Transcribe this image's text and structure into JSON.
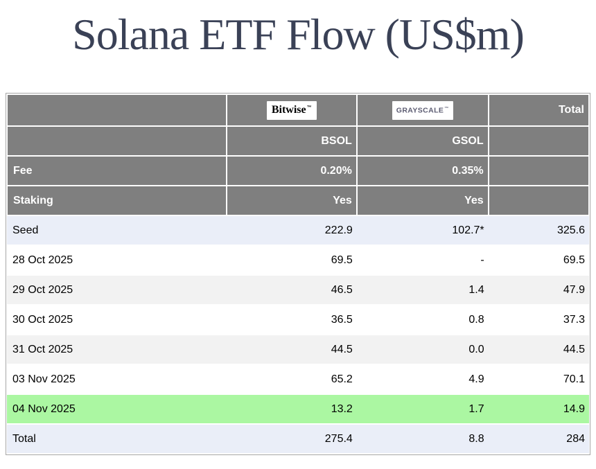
{
  "title": "Solana ETF Flow (US$m)",
  "header": {
    "bitwise_logo": "Bitwise",
    "bitwise_mark": "™",
    "grayscale_logo": "GRAYSCALE",
    "grayscale_mark": "™",
    "total_label": "Total",
    "bsol": "BSOL",
    "gsol": "GSOL"
  },
  "meta_rows": [
    {
      "label": "Fee",
      "bsol": "0.20%",
      "gsol": "0.35%",
      "total": ""
    },
    {
      "label": "Staking",
      "bsol": "Yes",
      "gsol": "Yes",
      "total": ""
    }
  ],
  "rows": [
    {
      "label": "Seed",
      "bsol": "222.9",
      "gsol": "102.7*",
      "total": "325.6"
    },
    {
      "label": "28 Oct 2025",
      "bsol": "69.5",
      "gsol": "-",
      "total": "69.5"
    },
    {
      "label": "29 Oct 2025",
      "bsol": "46.5",
      "gsol": "1.4",
      "total": "47.9"
    },
    {
      "label": "30 Oct 2025",
      "bsol": "36.5",
      "gsol": "0.8",
      "total": "37.3"
    },
    {
      "label": "31 Oct 2025",
      "bsol": "44.5",
      "gsol": "0.0",
      "total": "44.5"
    },
    {
      "label": "03 Nov 2025",
      "bsol": "65.2",
      "gsol": "4.9",
      "total": "70.1"
    },
    {
      "label": "04 Nov 2025",
      "bsol": "13.2",
      "gsol": "1.7",
      "total": "14.9"
    },
    {
      "label": "Total",
      "bsol": "275.4",
      "gsol": "8.8",
      "total": "284"
    }
  ],
  "colors": {
    "header_background": "#7f7f7f",
    "header_text": "#ffffff",
    "seed_and_total_row": "#eaeef8",
    "alt_row": "#f2f2f2",
    "highlight_row_green": "#abf7a2",
    "title_text": "#3a4156",
    "grayscale_logo_text": "#5c5c72",
    "table_border": "#a6a6a6"
  },
  "chart_data": {
    "type": "table",
    "title": "Solana ETF Flow (US$m)",
    "columns": [
      "",
      "BSOL (Bitwise)",
      "GSOL (Grayscale)",
      "Total"
    ],
    "fee": {
      "BSOL": "0.20%",
      "GSOL": "0.35%"
    },
    "staking": {
      "BSOL": "Yes",
      "GSOL": "Yes"
    },
    "rows": [
      [
        "Seed",
        222.9,
        "102.7*",
        325.6
      ],
      [
        "28 Oct 2025",
        69.5,
        null,
        69.5
      ],
      [
        "29 Oct 2025",
        46.5,
        1.4,
        47.9
      ],
      [
        "30 Oct 2025",
        36.5,
        0.8,
        37.3
      ],
      [
        "31 Oct 2025",
        44.5,
        0.0,
        44.5
      ],
      [
        "03 Nov 2025",
        65.2,
        4.9,
        70.1
      ],
      [
        "04 Nov 2025",
        13.2,
        1.7,
        14.9
      ],
      [
        "Total",
        275.4,
        8.8,
        284
      ]
    ],
    "notes": "Seed GSOL value marked with asterisk; 04 Nov 2025 row highlighted green; Seed and Total rows highlighted lavender"
  }
}
